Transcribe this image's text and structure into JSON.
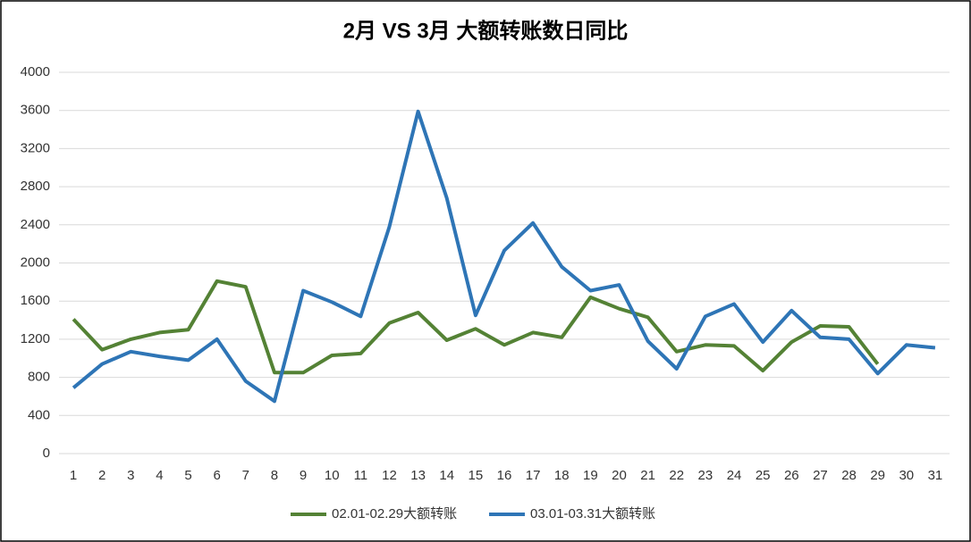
{
  "chart_data": {
    "type": "line",
    "title": "2月 VS 3月 大额转账数日同比",
    "categories": [
      1,
      2,
      3,
      4,
      5,
      6,
      7,
      8,
      9,
      10,
      11,
      12,
      13,
      14,
      15,
      16,
      17,
      18,
      19,
      20,
      21,
      22,
      23,
      24,
      25,
      26,
      27,
      28,
      29,
      30,
      31
    ],
    "series": [
      {
        "name": "02.01-02.29大额转账",
        "color": "#548235",
        "values": [
          1410,
          1090,
          1200,
          1270,
          1300,
          1810,
          1750,
          850,
          850,
          1030,
          1050,
          1370,
          1480,
          1190,
          1310,
          1140,
          1270,
          1220,
          1640,
          1520,
          1430,
          1070,
          1140,
          1130,
          870,
          1170,
          1340,
          1330,
          940,
          null,
          null
        ]
      },
      {
        "name": "03.01-03.31大额转账",
        "color": "#2e75b6",
        "values": [
          690,
          940,
          1070,
          1020,
          980,
          1200,
          760,
          550,
          1710,
          1590,
          1440,
          2380,
          3590,
          2680,
          1450,
          2130,
          2420,
          1960,
          1710,
          1770,
          1180,
          890,
          1440,
          1570,
          1170,
          1500,
          1220,
          1200,
          840,
          1140,
          1110
        ]
      }
    ],
    "ylim": [
      0,
      4000
    ],
    "yticks": [
      0,
      400,
      800,
      1200,
      1600,
      2000,
      2400,
      2800,
      3200,
      3600,
      4000
    ],
    "grid": true,
    "legend": "bottom"
  }
}
